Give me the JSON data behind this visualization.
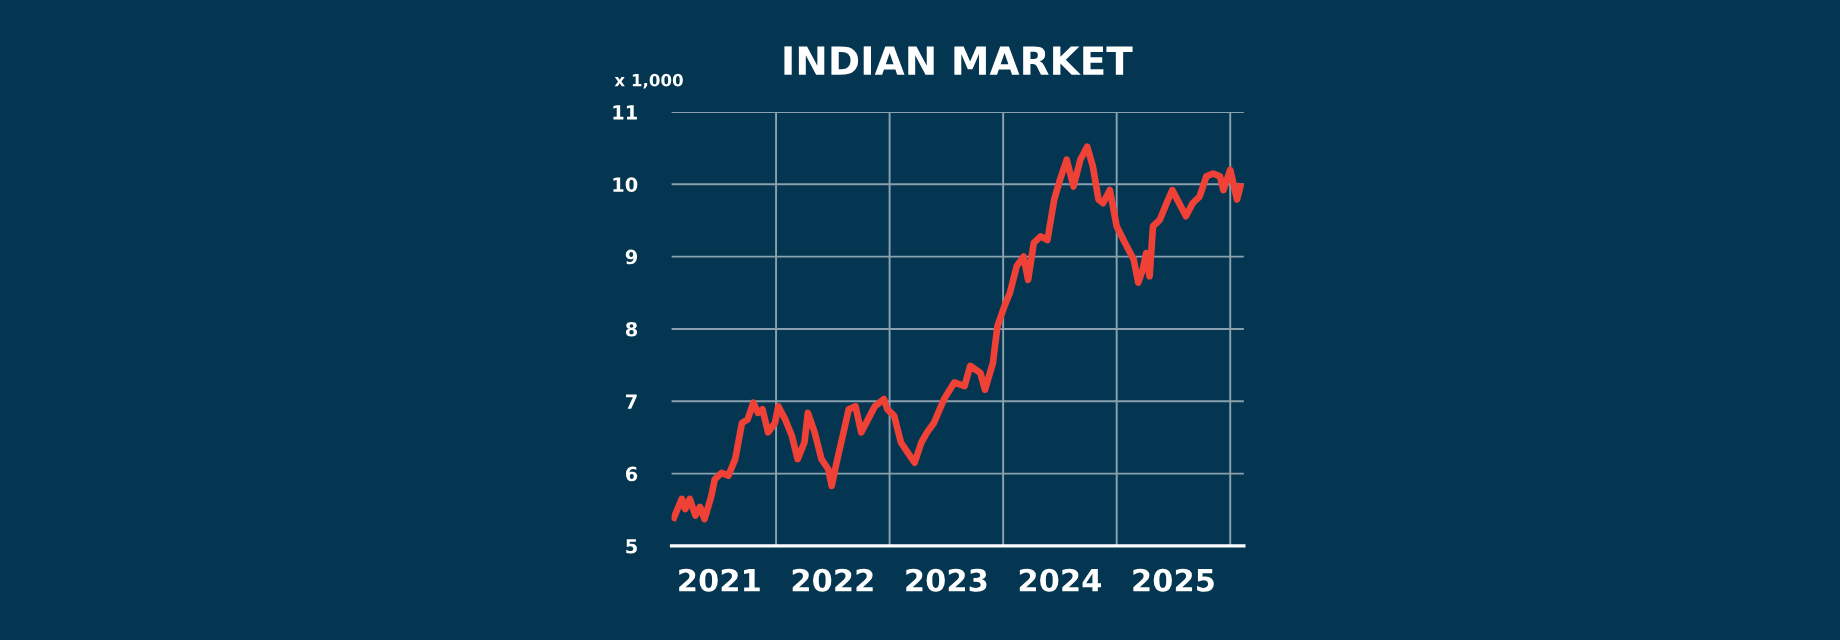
{
  "chart_data": {
    "type": "line",
    "title": "INDIAN MARKET",
    "annotations": [
      "x 1,000"
    ],
    "x": [
      2020.6,
      2020.67,
      2020.7,
      2020.74,
      2020.79,
      2020.83,
      2020.87,
      2020.93,
      2020.96,
      2021.02,
      2021.08,
      2021.14,
      2021.2,
      2021.25,
      2021.3,
      2021.34,
      2021.38,
      2021.43,
      2021.49,
      2021.52,
      2021.58,
      2021.64,
      2021.69,
      2021.75,
      2021.78,
      2021.84,
      2021.9,
      2021.96,
      2021.99,
      2022.04,
      2022.1,
      2022.14,
      2022.2,
      2022.25,
      2022.31,
      2022.37,
      2022.45,
      2022.48,
      2022.54,
      2022.6,
      2022.66,
      2022.72,
      2022.78,
      2022.83,
      2022.89,
      2022.98,
      2023.07,
      2023.16,
      2023.21,
      2023.3,
      2023.34,
      2023.41,
      2023.45,
      2023.51,
      2023.56,
      2023.62,
      2023.68,
      2023.72,
      2023.77,
      2023.83,
      2023.89,
      2023.95,
      2024.0,
      2024.06,
      2024.12,
      2024.18,
      2024.24,
      2024.29,
      2024.34,
      2024.38,
      2024.44,
      2024.5,
      2024.56,
      2024.65,
      2024.69,
      2024.73,
      2024.76,
      2024.79,
      2024.82,
      2024.88,
      2024.94,
      2024.99,
      2025.05,
      2025.11,
      2025.17,
      2025.23,
      2025.29,
      2025.35,
      2025.41,
      2025.44,
      2025.5,
      2025.56,
      2025.59
    ],
    "series": [
      {
        "color": "#ef4136",
        "values": [
          5.39,
          5.65,
          5.51,
          5.65,
          5.42,
          5.54,
          5.37,
          5.69,
          5.92,
          6.01,
          5.97,
          6.2,
          6.7,
          6.75,
          6.98,
          6.84,
          6.89,
          6.57,
          6.7,
          6.93,
          6.75,
          6.52,
          6.2,
          6.43,
          6.84,
          6.57,
          6.2,
          6.06,
          5.83,
          6.2,
          6.61,
          6.89,
          6.93,
          6.57,
          6.75,
          6.93,
          7.03,
          6.89,
          6.8,
          6.43,
          6.29,
          6.15,
          6.43,
          6.57,
          6.7,
          7.03,
          7.26,
          7.21,
          7.49,
          7.39,
          7.16,
          7.53,
          8.04,
          8.31,
          8.5,
          8.87,
          9.0,
          8.68,
          9.19,
          9.28,
          9.23,
          9.79,
          10.06,
          10.34,
          9.97,
          10.34,
          10.52,
          10.25,
          9.79,
          9.74,
          9.92,
          9.42,
          9.23,
          8.96,
          8.64,
          8.82,
          9.05,
          8.73,
          9.42,
          9.51,
          9.74,
          9.92,
          9.74,
          9.56,
          9.74,
          9.83,
          10.11,
          10.15,
          10.11,
          9.92,
          10.2,
          9.79,
          9.97
        ]
      }
    ],
    "xlim": [
      2020.58,
      2025.62
    ],
    "ylim": [
      5,
      11
    ],
    "xticks": [
      {
        "value": 2021,
        "label": "2021"
      },
      {
        "value": 2021.5,
        "label": null
      },
      {
        "value": 2022,
        "label": "2022"
      },
      {
        "value": 2022.5,
        "label": null
      },
      {
        "value": 2023,
        "label": "2023"
      },
      {
        "value": 2023.5,
        "label": null
      },
      {
        "value": 2024,
        "label": "2024"
      },
      {
        "value": 2024.5,
        "label": null
      },
      {
        "value": 2025,
        "label": "2025"
      },
      {
        "value": 2025.5,
        "label": null
      }
    ],
    "yticks": [
      5,
      6,
      7,
      8,
      9,
      10,
      11
    ],
    "grid": true,
    "legend": false,
    "marker": "none",
    "line_style": "solid"
  }
}
